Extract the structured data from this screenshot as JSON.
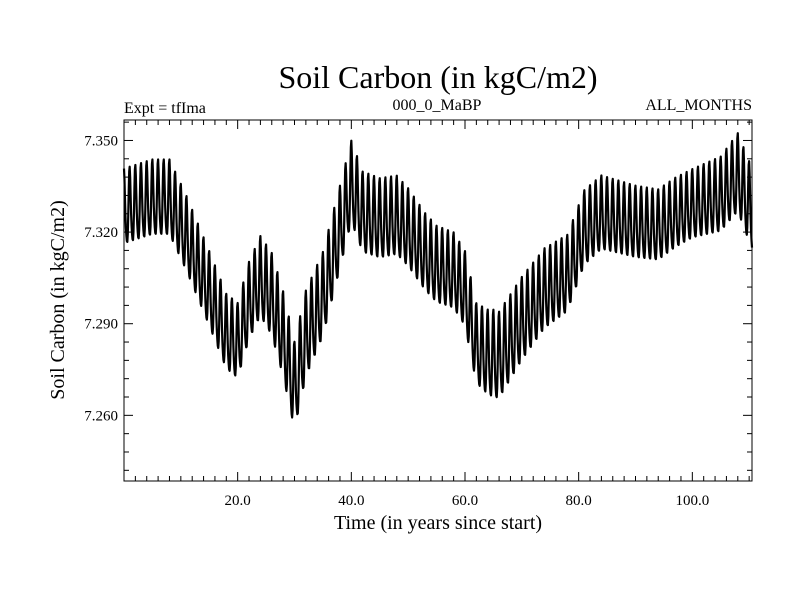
{
  "chart_data": {
    "type": "line",
    "title": "Soil Carbon (in kgC/m2)",
    "subtitle_left": "Expt = tfIma",
    "subtitle_center": "000_0_MaBP",
    "subtitle_right": "ALL_MONTHS",
    "xlabel": "Time (in years since start)",
    "ylabel": "Soil Carbon (in kgC/m2)",
    "xlim": [
      0,
      110.5
    ],
    "ylim": [
      7.2385,
      7.3567
    ],
    "x_ticks": [
      20,
      40,
      60,
      80,
      100
    ],
    "x_tick_labels": [
      "20.0",
      "40.0",
      "60.0",
      "80.0",
      "100.0"
    ],
    "y_ticks": [
      7.26,
      7.29,
      7.32,
      7.35
    ],
    "y_tick_labels": [
      "7.260",
      "7.290",
      "7.320",
      "7.350"
    ],
    "grid": false,
    "line_color": "#000000",
    "series": [
      {
        "name": "Soil Carbon",
        "note": "monthly series, ~1 cycle per year; trend = centre line, amplitude = half the seasonal swing",
        "trend": [
          [
            0,
            7.327
          ],
          [
            5,
            7.33
          ],
          [
            8,
            7.33
          ],
          [
            11,
            7.318
          ],
          [
            15,
            7.3
          ],
          [
            18,
            7.286
          ],
          [
            20,
            7.283
          ],
          [
            22,
            7.296
          ],
          [
            24,
            7.304
          ],
          [
            26,
            7.298
          ],
          [
            28,
            7.285
          ],
          [
            30,
            7.268
          ],
          [
            32,
            7.285
          ],
          [
            35,
            7.298
          ],
          [
            38,
            7.32
          ],
          [
            40,
            7.335
          ],
          [
            42,
            7.325
          ],
          [
            45,
            7.323
          ],
          [
            48,
            7.324
          ],
          [
            50,
            7.32
          ],
          [
            53,
            7.312
          ],
          [
            55,
            7.308
          ],
          [
            58,
            7.306
          ],
          [
            60,
            7.3
          ],
          [
            62,
            7.282
          ],
          [
            64,
            7.279
          ],
          [
            66,
            7.278
          ],
          [
            70,
            7.29
          ],
          [
            74,
            7.3
          ],
          [
            78,
            7.305
          ],
          [
            81,
            7.32
          ],
          [
            84,
            7.325
          ],
          [
            90,
            7.322
          ],
          [
            94,
            7.321
          ],
          [
            97,
            7.325
          ],
          [
            100,
            7.328
          ],
          [
            105,
            7.331
          ],
          [
            108,
            7.338
          ],
          [
            110.5,
            7.326
          ]
        ],
        "amplitude": [
          [
            0,
            0.012
          ],
          [
            10,
            0.012
          ],
          [
            20,
            0.012
          ],
          [
            30,
            0.014
          ],
          [
            40,
            0.013
          ],
          [
            60,
            0.012
          ],
          [
            65,
            0.014
          ],
          [
            80,
            0.012
          ],
          [
            100,
            0.011
          ],
          [
            110.5,
            0.013
          ]
        ]
      }
    ]
  }
}
